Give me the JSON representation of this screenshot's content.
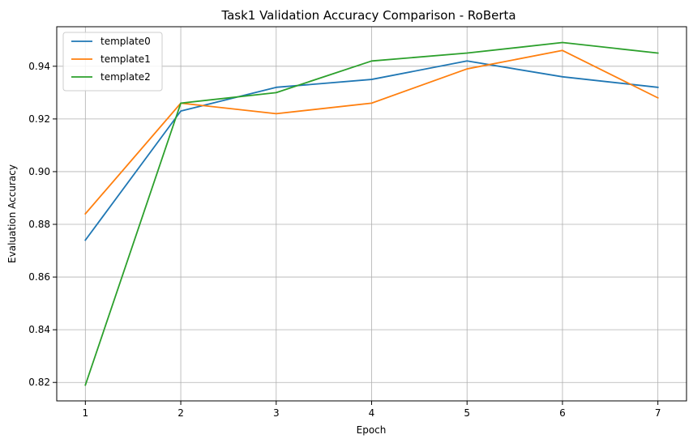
{
  "chart_data": {
    "type": "line",
    "title": "Task1 Validation Accuracy Comparison - RoBerta",
    "xlabel": "Epoch",
    "ylabel": "Evaluation Accuracy",
    "x": [
      1,
      2,
      3,
      4,
      5,
      6,
      7
    ],
    "x_ticks": [
      "1",
      "2",
      "3",
      "4",
      "5",
      "6",
      "7"
    ],
    "y_ticks": [
      "0.82",
      "0.84",
      "0.86",
      "0.88",
      "0.90",
      "0.92",
      "0.94"
    ],
    "xlim": [
      0.7,
      7.3
    ],
    "ylim": [
      0.813,
      0.955
    ],
    "grid": true,
    "legend_position": "top-left",
    "series": [
      {
        "name": "template0",
        "color": "#1f77b4",
        "values": [
          0.874,
          0.923,
          0.932,
          0.935,
          0.942,
          0.936,
          0.932
        ]
      },
      {
        "name": "template1",
        "color": "#ff7f0e",
        "values": [
          0.884,
          0.926,
          0.922,
          0.926,
          0.939,
          0.946,
          0.928
        ]
      },
      {
        "name": "template2",
        "color": "#2ca02c",
        "values": [
          0.819,
          0.926,
          0.93,
          0.942,
          0.945,
          0.949,
          0.945
        ]
      }
    ]
  }
}
